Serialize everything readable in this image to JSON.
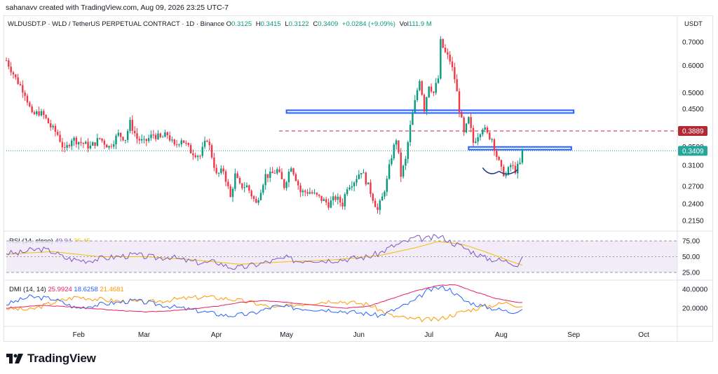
{
  "header": {
    "credit": "sahanavv created with TradingView.com, Aug 09, 2026 23:25 UTC-7"
  },
  "legend": {
    "symbol": "WLDUSDT.P · WLD / TetherUS PERPETUAL CONTRACT · 1D · Binance",
    "open_label": "O",
    "open": "0.3125",
    "high_label": "H",
    "high": "0.3415",
    "low_label": "L",
    "low": "0.3122",
    "close_label": "C",
    "close": "0.3409",
    "change": "+0.0284 (+9.09%)",
    "vol_label": "Vol",
    "vol": "111.9 M"
  },
  "price_axis": {
    "unit": "USDT"
  },
  "rsi": {
    "title": "RSI (14, close)",
    "value": "49.94",
    "ma_value": "36.45"
  },
  "dmi": {
    "title": "DMI (14, 14)",
    "adx": "25.9924",
    "plus_di": "18.6258",
    "minus_di": "21.4681"
  },
  "brand": {
    "name": "TradingView"
  },
  "chart_data": {
    "type": "candlestick",
    "y_scale": "log",
    "price_ticks": [
      0.7,
      0.6,
      0.5,
      0.45,
      0.35,
      0.31,
      0.27,
      0.24,
      0.215
    ],
    "price_tick_labels": [
      "0.7000",
      "0.6000",
      "0.5000",
      "0.4500",
      "0.3500",
      "0.3100",
      "0.2700",
      "0.2400",
      "0.2150"
    ],
    "time_ticks": [
      "Feb",
      "Mar",
      "Apr",
      "May",
      "Jun",
      "Jul",
      "Aug",
      "Sep",
      "Oct"
    ],
    "time_tick_days": [
      31,
      59,
      90,
      120,
      151,
      181,
      212,
      243,
      273
    ],
    "last_day": 221,
    "annotations": {
      "resistance_zone_1": {
        "from_day": 120,
        "to_day": 243,
        "low": 0.44,
        "high": 0.446
      },
      "resistance_zone_2": {
        "from_day": 198,
        "to_day": 242,
        "low": 0.344,
        "high": 0.35
      },
      "dashed_level": 0.3889,
      "level_label": "0.3889",
      "current_price": 0.3409,
      "current_label": "0.3409"
    },
    "anchors": [
      [
        0,
        0.62
      ],
      [
        4,
        0.55
      ],
      [
        8,
        0.5
      ],
      [
        11,
        0.43
      ],
      [
        14,
        0.44
      ],
      [
        16,
        0.43
      ],
      [
        19,
        0.4
      ],
      [
        22,
        0.38
      ],
      [
        25,
        0.34
      ],
      [
        28,
        0.37
      ],
      [
        32,
        0.36
      ],
      [
        36,
        0.35
      ],
      [
        40,
        0.37
      ],
      [
        44,
        0.35
      ],
      [
        48,
        0.38
      ],
      [
        51,
        0.37
      ],
      [
        53,
        0.41
      ],
      [
        56,
        0.37
      ],
      [
        59,
        0.36
      ],
      [
        63,
        0.38
      ],
      [
        66,
        0.37
      ],
      [
        69,
        0.38
      ],
      [
        72,
        0.35
      ],
      [
        75,
        0.37
      ],
      [
        79,
        0.34
      ],
      [
        83,
        0.33
      ],
      [
        86,
        0.37
      ],
      [
        90,
        0.29
      ],
      [
        93,
        0.3
      ],
      [
        96,
        0.25
      ],
      [
        98,
        0.29
      ],
      [
        100,
        0.27
      ],
      [
        103,
        0.27
      ],
      [
        107,
        0.24
      ],
      [
        111,
        0.29
      ],
      [
        113,
        0.29
      ],
      [
        116,
        0.3
      ],
      [
        119,
        0.27
      ],
      [
        122,
        0.31
      ],
      [
        126,
        0.26
      ],
      [
        130,
        0.26
      ],
      [
        134,
        0.25
      ],
      [
        138,
        0.24
      ],
      [
        141,
        0.25
      ],
      [
        144,
        0.24
      ],
      [
        146,
        0.27
      ],
      [
        149,
        0.28
      ],
      [
        152,
        0.3
      ],
      [
        155,
        0.27
      ],
      [
        157,
        0.25
      ],
      [
        159,
        0.23
      ],
      [
        161,
        0.25
      ],
      [
        163,
        0.28
      ],
      [
        165,
        0.33
      ],
      [
        167,
        0.37
      ],
      [
        169,
        0.29
      ],
      [
        171,
        0.32
      ],
      [
        173,
        0.4
      ],
      [
        175,
        0.47
      ],
      [
        177,
        0.55
      ],
      [
        179,
        0.45
      ],
      [
        181,
        0.53
      ],
      [
        183,
        0.5
      ],
      [
        185,
        0.55
      ],
      [
        186,
        0.7
      ],
      [
        188,
        0.65
      ],
      [
        190,
        0.62
      ],
      [
        192,
        0.55
      ],
      [
        194,
        0.45
      ],
      [
        196,
        0.38
      ],
      [
        198,
        0.42
      ],
      [
        200,
        0.36
      ],
      [
        202,
        0.38
      ],
      [
        204,
        0.4
      ],
      [
        206,
        0.38
      ],
      [
        208,
        0.37
      ],
      [
        210,
        0.33
      ],
      [
        212,
        0.3
      ],
      [
        214,
        0.29
      ],
      [
        216,
        0.31
      ],
      [
        218,
        0.3
      ],
      [
        220,
        0.3125
      ],
      [
        221,
        0.3409
      ]
    ],
    "rsi_ticks": [
      75,
      50,
      25
    ],
    "rsi_tick_labels": [
      "75.00",
      "50.00",
      "25.00"
    ],
    "rsi_series": [
      [
        0,
        56
      ],
      [
        5,
        55
      ],
      [
        10,
        60
      ],
      [
        15,
        62
      ],
      [
        20,
        58
      ],
      [
        25,
        48
      ],
      [
        30,
        45
      ],
      [
        35,
        44
      ],
      [
        40,
        47
      ],
      [
        45,
        49
      ],
      [
        50,
        51
      ],
      [
        55,
        53
      ],
      [
        60,
        50
      ],
      [
        65,
        48
      ],
      [
        70,
        50
      ],
      [
        75,
        45
      ],
      [
        80,
        42
      ],
      [
        85,
        40
      ],
      [
        90,
        42
      ],
      [
        95,
        34
      ],
      [
        100,
        32
      ],
      [
        105,
        36
      ],
      [
        110,
        40
      ],
      [
        115,
        44
      ],
      [
        120,
        48
      ],
      [
        125,
        43
      ],
      [
        130,
        46
      ],
      [
        135,
        44
      ],
      [
        140,
        45
      ],
      [
        145,
        46
      ],
      [
        150,
        48
      ],
      [
        155,
        50
      ],
      [
        160,
        56
      ],
      [
        165,
        66
      ],
      [
        170,
        72
      ],
      [
        175,
        80
      ],
      [
        180,
        78
      ],
      [
        185,
        82
      ],
      [
        188,
        79
      ],
      [
        190,
        74
      ],
      [
        195,
        66
      ],
      [
        200,
        57
      ],
      [
        205,
        48
      ],
      [
        210,
        45
      ],
      [
        215,
        42
      ],
      [
        219,
        38
      ],
      [
        221,
        49.94
      ]
    ],
    "rsi_ma": [
      [
        0,
        54
      ],
      [
        20,
        58
      ],
      [
        40,
        50
      ],
      [
        60,
        50
      ],
      [
        80,
        45
      ],
      [
        100,
        38
      ],
      [
        120,
        42
      ],
      [
        140,
        45
      ],
      [
        160,
        52
      ],
      [
        175,
        64
      ],
      [
        185,
        74
      ],
      [
        195,
        70
      ],
      [
        205,
        58
      ],
      [
        215,
        44
      ],
      [
        221,
        36.45
      ]
    ],
    "dmi_ticks": [
      40,
      20
    ],
    "dmi_tick_labels": [
      "40.0000",
      "20.0000"
    ],
    "dmi_series": {
      "adx": [
        [
          0,
          20
        ],
        [
          15,
          23
        ],
        [
          30,
          21
        ],
        [
          45,
          18
        ],
        [
          60,
          16
        ],
        [
          75,
          18
        ],
        [
          90,
          22
        ],
        [
          100,
          26
        ],
        [
          110,
          28
        ],
        [
          120,
          26
        ],
        [
          130,
          24
        ],
        [
          145,
          20
        ],
        [
          155,
          22
        ],
        [
          165,
          30
        ],
        [
          175,
          38
        ],
        [
          185,
          44
        ],
        [
          192,
          45
        ],
        [
          200,
          38
        ],
        [
          210,
          30
        ],
        [
          220,
          26
        ],
        [
          221,
          25.99
        ]
      ],
      "plus_di": [
        [
          0,
          24
        ],
        [
          10,
          32
        ],
        [
          20,
          30
        ],
        [
          30,
          20
        ],
        [
          40,
          24
        ],
        [
          55,
          28
        ],
        [
          70,
          22
        ],
        [
          85,
          16
        ],
        [
          95,
          12
        ],
        [
          105,
          14
        ],
        [
          115,
          22
        ],
        [
          125,
          20
        ],
        [
          140,
          18
        ],
        [
          155,
          14
        ],
        [
          160,
          12
        ],
        [
          168,
          20
        ],
        [
          175,
          28
        ],
        [
          180,
          38
        ],
        [
          186,
          42
        ],
        [
          190,
          40
        ],
        [
          196,
          28
        ],
        [
          204,
          22
        ],
        [
          212,
          18
        ],
        [
          216,
          16
        ],
        [
          221,
          18.63
        ]
      ],
      "minus_di": [
        [
          0,
          20
        ],
        [
          10,
          18
        ],
        [
          20,
          26
        ],
        [
          30,
          32
        ],
        [
          45,
          28
        ],
        [
          60,
          26
        ],
        [
          75,
          30
        ],
        [
          85,
          32
        ],
        [
          95,
          30
        ],
        [
          105,
          26
        ],
        [
          115,
          20
        ],
        [
          125,
          24
        ],
        [
          140,
          28
        ],
        [
          155,
          24
        ],
        [
          165,
          12
        ],
        [
          175,
          8
        ],
        [
          185,
          8
        ],
        [
          195,
          16
        ],
        [
          205,
          22
        ],
        [
          215,
          26
        ],
        [
          221,
          21.47
        ]
      ]
    }
  },
  "colors": {
    "up": "#089981",
    "down": "#f23645",
    "zone": "#2962ff",
    "level": "#b22833",
    "last": "#26a69a",
    "rsi": "#7e57c2",
    "rsi_ma": "#f0c000",
    "rsi_band": "#ede7f6",
    "adx": "#e91e63",
    "plus_di": "#2962ff",
    "minus_di": "#ff9800"
  }
}
